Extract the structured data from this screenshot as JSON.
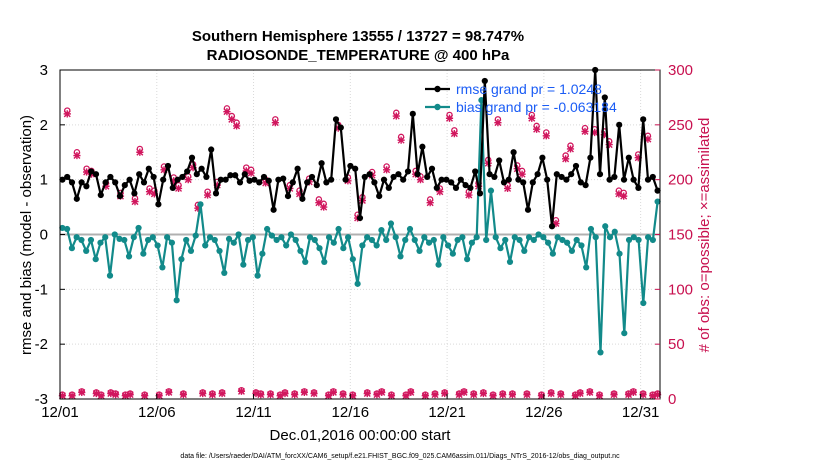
{
  "chart_data": {
    "type": "line",
    "title": [
      "Southern Hemisphere 13555 / 13727 = 98.747%",
      "RADIOSONDE_TEMPERATURE @ 400 hPa"
    ],
    "xlabel": "Dec.01,2016 00:00:00 start",
    "ylabel_left": "rmse and bias (model - observation)",
    "ylabel_right": "# of obs: o=possible; ×=assimilated",
    "footer": "data file: /Users/raeder/DAI/ATM_forcXX/CAM6_setup/f.e21.FHIST_BGC.f09_025.CAM6assim.011/Diags_NTrS_2016-12/obs_diag_output.nc",
    "ylim_left": [
      -3,
      3
    ],
    "ylim_right": [
      0,
      300
    ],
    "xlim": [
      0,
      31
    ],
    "yticks_left": [
      -3,
      -2,
      -1,
      0,
      1,
      2,
      3
    ],
    "yticks_right": [
      0,
      50,
      100,
      150,
      200,
      250,
      300
    ],
    "xticks": [
      {
        "x": 0,
        "label": "12/01"
      },
      {
        "x": 5,
        "label": "12/06"
      },
      {
        "x": 10,
        "label": "12/11"
      },
      {
        "x": 15,
        "label": "12/16"
      },
      {
        "x": 20,
        "label": "12/21"
      },
      {
        "x": 25,
        "label": "12/26"
      },
      {
        "x": 30,
        "label": "12/31"
      }
    ],
    "grid": true,
    "legend_position": "top-right",
    "colors": {
      "rmse": "#000000",
      "bias": "#128a8a",
      "obs": "#d1175e",
      "zero_line": "#b0b0b0",
      "right_axis": "#c8104f",
      "legend_text": "#1a5cf5"
    },
    "series": [
      {
        "name": "rmse grand pr = 1.0248",
        "values": [
          1.0,
          1.05,
          0.95,
          0.65,
          0.95,
          0.88,
          1.15,
          1.1,
          0.72,
          0.95,
          1.05,
          0.95,
          0.7,
          0.9,
          1.0,
          0.75,
          1.1,
          0.95,
          1.2,
          1.05,
          0.55,
          1.0,
          1.25,
          0.85,
          1.0,
          1.05,
          1.15,
          1.4,
          1.1,
          1.2,
          1.05,
          1.55,
          0.75,
          1.0,
          1.0,
          1.08,
          1.08,
          0.95,
          1.1,
          0.98,
          1.0,
          0.95,
          1.05,
          0.98,
          0.45,
          1.0,
          1.02,
          0.7,
          0.95,
          1.2,
          0.65,
          0.95,
          1.05,
          0.9,
          1.3,
          0.95,
          1.0,
          2.1,
          1.95,
          1.0,
          1.25,
          1.2,
          0.3,
          1.05,
          1.1,
          0.95,
          0.7,
          1.0,
          0.85,
          1.05,
          1.1,
          1.0,
          1.15,
          2.2,
          1.1,
          1.6,
          1.05,
          1.2,
          0.85,
          1.0,
          1.0,
          0.95,
          0.85,
          1.0,
          0.9,
          0.85,
          1.15,
          0.75,
          2.8,
          1.1,
          1.05,
          1.35,
          0.95,
          1.0,
          1.5,
          1.0,
          0.95,
          0.45,
          0.95,
          1.1,
          1.4,
          1.0,
          0.15,
          1.1,
          1.05,
          1.0,
          1.1,
          1.25,
          0.95,
          0.9,
          1.4,
          3.0,
          1.1,
          2.5,
          1.0,
          1.05,
          2.0,
          1.0,
          1.4,
          1.0,
          0.85,
          2.1,
          1.0,
          1.05,
          0.8
        ]
      },
      {
        "name": "bias grand pr = -0.063184",
        "values": [
          0.12,
          0.1,
          -0.25,
          -0.05,
          -0.1,
          -0.3,
          -0.1,
          -0.45,
          -0.15,
          -0.05,
          -0.75,
          0.0,
          -0.08,
          -0.1,
          -0.4,
          -0.05,
          0.12,
          -0.35,
          -0.1,
          -0.05,
          -0.2,
          -0.6,
          -0.05,
          -0.15,
          -1.2,
          -0.45,
          -0.1,
          -0.3,
          -0.02,
          0.55,
          -0.2,
          -0.05,
          -0.1,
          -0.3,
          -0.7,
          -0.08,
          -0.15,
          0.0,
          -0.55,
          -0.1,
          -0.05,
          -0.75,
          -0.35,
          0.1,
          -0.02,
          -0.1,
          -0.05,
          -0.2,
          0.0,
          -0.1,
          -0.3,
          -0.5,
          -0.05,
          -0.1,
          -0.25,
          -0.5,
          -0.05,
          -0.15,
          0.1,
          -0.25,
          -0.05,
          -0.45,
          -0.9,
          -0.2,
          -0.05,
          -0.1,
          -0.2,
          0.08,
          -0.1,
          0.2,
          -0.05,
          -0.4,
          -0.1,
          0.1,
          -0.1,
          -0.3,
          -0.05,
          -0.15,
          -0.1,
          -0.55,
          -0.05,
          -0.2,
          -0.35,
          -0.1,
          -0.05,
          -0.45,
          -0.15,
          -0.05,
          2.45,
          -0.1,
          0.8,
          -0.05,
          -0.25,
          -0.1,
          -0.5,
          -0.05,
          -0.1,
          -0.3,
          -0.05,
          -0.1,
          0.0,
          -0.05,
          -0.15,
          -0.35,
          -0.05,
          -0.1,
          -0.15,
          -0.3,
          -0.1,
          -0.2,
          -0.6,
          0.1,
          -0.05,
          -2.15,
          0.15,
          -0.05,
          0.05,
          -0.35,
          -1.8,
          -0.1,
          -0.05,
          -0.1,
          -1.25,
          -0.05,
          -0.1,
          0.6
        ]
      },
      {
        "name": "obs_possible",
        "values": [
          4,
          263,
          4,
          225,
          7,
          210,
          208,
          6,
          4,
          197,
          6,
          5,
          188,
          4,
          5,
          183,
          228,
          4,
          192,
          190,
          4,
          212,
          7,
          202,
          195,
          5,
          203,
          214,
          177,
          6,
          189,
          5,
          198,
          6,
          265,
          258,
          252,
          8,
          211,
          209,
          6,
          5,
          200,
          5,
          255,
          4,
          6,
          195,
          5,
          190,
          7,
          201,
          6,
          182,
          178,
          4,
          7,
          250,
          5,
          202,
          4,
          168,
          184,
          6,
          207,
          5,
          7,
          212,
          4,
          261,
          239,
          4,
          7,
          208,
          203,
          4,
          182,
          5,
          192,
          6,
          259,
          245,
          5,
          7,
          189,
          5,
          197,
          6,
          218,
          4,
          255,
          5,
          195,
          5,
          213,
          208,
          5,
          259,
          249,
          4,
          243,
          6,
          163,
          5,
          222,
          231,
          4,
          6,
          247,
          7,
          246,
          4,
          244,
          235,
          5,
          190,
          188,
          5,
          7,
          223,
          5,
          240,
          4,
          5
        ]
      },
      {
        "name": "obs_assimilated",
        "values": [
          3,
          260,
          3,
          222,
          6,
          207,
          205,
          5,
          3,
          194,
          5,
          4,
          185,
          3,
          4,
          180,
          225,
          3,
          189,
          187,
          3,
          209,
          6,
          199,
          192,
          4,
          200,
          211,
          174,
          5,
          186,
          4,
          195,
          5,
          262,
          255,
          249,
          7,
          208,
          206,
          5,
          4,
          197,
          4,
          252,
          3,
          5,
          192,
          4,
          187,
          6,
          198,
          5,
          179,
          175,
          3,
          6,
          247,
          4,
          199,
          3,
          165,
          181,
          5,
          204,
          4,
          6,
          209,
          3,
          258,
          236,
          3,
          6,
          205,
          200,
          3,
          179,
          4,
          189,
          5,
          256,
          242,
          4,
          6,
          186,
          4,
          194,
          5,
          215,
          3,
          252,
          4,
          192,
          4,
          210,
          205,
          4,
          256,
          246,
          3,
          240,
          5,
          160,
          4,
          219,
          228,
          3,
          5,
          244,
          6,
          243,
          3,
          241,
          232,
          4,
          187,
          185,
          4,
          6,
          220,
          4,
          237,
          3,
          4
        ]
      }
    ]
  }
}
